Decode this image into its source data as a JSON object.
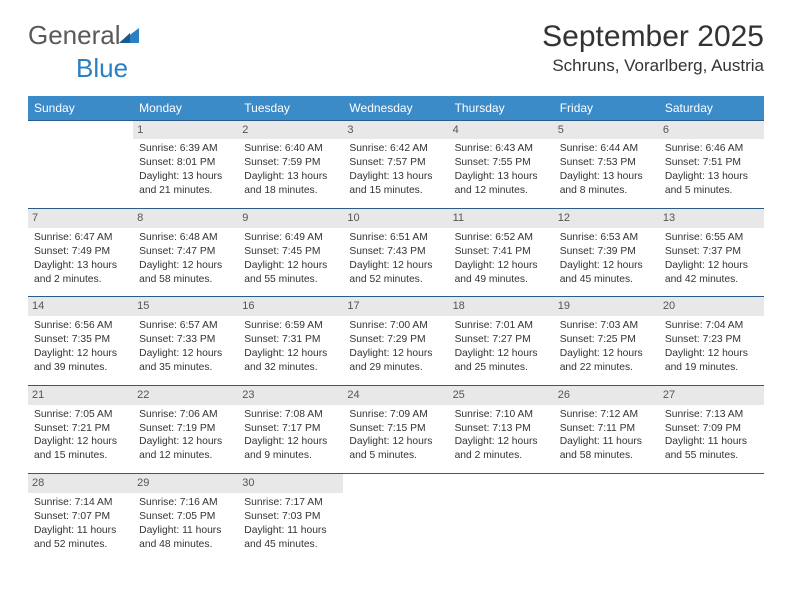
{
  "brand": {
    "part1": "General",
    "part2": "Blue"
  },
  "title": "September 2025",
  "location": "Schruns, Vorarlberg, Austria",
  "colors": {
    "header_bg": "#3b8bc9",
    "row_border": "#2d5b86",
    "daynum_bg": "#e8e8e8",
    "text": "#333333",
    "logo_gray": "#5a5a5a",
    "logo_blue": "#2b7fc3"
  },
  "dayNames": [
    "Sunday",
    "Monday",
    "Tuesday",
    "Wednesday",
    "Thursday",
    "Friday",
    "Saturday"
  ],
  "weeks": [
    [
      null,
      {
        "n": "1",
        "sr": "6:39 AM",
        "ss": "8:01 PM",
        "dl": "13 hours and 21 minutes."
      },
      {
        "n": "2",
        "sr": "6:40 AM",
        "ss": "7:59 PM",
        "dl": "13 hours and 18 minutes."
      },
      {
        "n": "3",
        "sr": "6:42 AM",
        "ss": "7:57 PM",
        "dl": "13 hours and 15 minutes."
      },
      {
        "n": "4",
        "sr": "6:43 AM",
        "ss": "7:55 PM",
        "dl": "13 hours and 12 minutes."
      },
      {
        "n": "5",
        "sr": "6:44 AM",
        "ss": "7:53 PM",
        "dl": "13 hours and 8 minutes."
      },
      {
        "n": "6",
        "sr": "6:46 AM",
        "ss": "7:51 PM",
        "dl": "13 hours and 5 minutes."
      }
    ],
    [
      {
        "n": "7",
        "sr": "6:47 AM",
        "ss": "7:49 PM",
        "dl": "13 hours and 2 minutes."
      },
      {
        "n": "8",
        "sr": "6:48 AM",
        "ss": "7:47 PM",
        "dl": "12 hours and 58 minutes."
      },
      {
        "n": "9",
        "sr": "6:49 AM",
        "ss": "7:45 PM",
        "dl": "12 hours and 55 minutes."
      },
      {
        "n": "10",
        "sr": "6:51 AM",
        "ss": "7:43 PM",
        "dl": "12 hours and 52 minutes."
      },
      {
        "n": "11",
        "sr": "6:52 AM",
        "ss": "7:41 PM",
        "dl": "12 hours and 49 minutes."
      },
      {
        "n": "12",
        "sr": "6:53 AM",
        "ss": "7:39 PM",
        "dl": "12 hours and 45 minutes."
      },
      {
        "n": "13",
        "sr": "6:55 AM",
        "ss": "7:37 PM",
        "dl": "12 hours and 42 minutes."
      }
    ],
    [
      {
        "n": "14",
        "sr": "6:56 AM",
        "ss": "7:35 PM",
        "dl": "12 hours and 39 minutes."
      },
      {
        "n": "15",
        "sr": "6:57 AM",
        "ss": "7:33 PM",
        "dl": "12 hours and 35 minutes."
      },
      {
        "n": "16",
        "sr": "6:59 AM",
        "ss": "7:31 PM",
        "dl": "12 hours and 32 minutes."
      },
      {
        "n": "17",
        "sr": "7:00 AM",
        "ss": "7:29 PM",
        "dl": "12 hours and 29 minutes."
      },
      {
        "n": "18",
        "sr": "7:01 AM",
        "ss": "7:27 PM",
        "dl": "12 hours and 25 minutes."
      },
      {
        "n": "19",
        "sr": "7:03 AM",
        "ss": "7:25 PM",
        "dl": "12 hours and 22 minutes."
      },
      {
        "n": "20",
        "sr": "7:04 AM",
        "ss": "7:23 PM",
        "dl": "12 hours and 19 minutes."
      }
    ],
    [
      {
        "n": "21",
        "sr": "7:05 AM",
        "ss": "7:21 PM",
        "dl": "12 hours and 15 minutes."
      },
      {
        "n": "22",
        "sr": "7:06 AM",
        "ss": "7:19 PM",
        "dl": "12 hours and 12 minutes."
      },
      {
        "n": "23",
        "sr": "7:08 AM",
        "ss": "7:17 PM",
        "dl": "12 hours and 9 minutes."
      },
      {
        "n": "24",
        "sr": "7:09 AM",
        "ss": "7:15 PM",
        "dl": "12 hours and 5 minutes."
      },
      {
        "n": "25",
        "sr": "7:10 AM",
        "ss": "7:13 PM",
        "dl": "12 hours and 2 minutes."
      },
      {
        "n": "26",
        "sr": "7:12 AM",
        "ss": "7:11 PM",
        "dl": "11 hours and 58 minutes."
      },
      {
        "n": "27",
        "sr": "7:13 AM",
        "ss": "7:09 PM",
        "dl": "11 hours and 55 minutes."
      }
    ],
    [
      {
        "n": "28",
        "sr": "7:14 AM",
        "ss": "7:07 PM",
        "dl": "11 hours and 52 minutes."
      },
      {
        "n": "29",
        "sr": "7:16 AM",
        "ss": "7:05 PM",
        "dl": "11 hours and 48 minutes."
      },
      {
        "n": "30",
        "sr": "7:17 AM",
        "ss": "7:03 PM",
        "dl": "11 hours and 45 minutes."
      },
      null,
      null,
      null,
      null
    ]
  ],
  "labels": {
    "sunrise": "Sunrise: ",
    "sunset": "Sunset: ",
    "daylight": "Daylight: "
  }
}
